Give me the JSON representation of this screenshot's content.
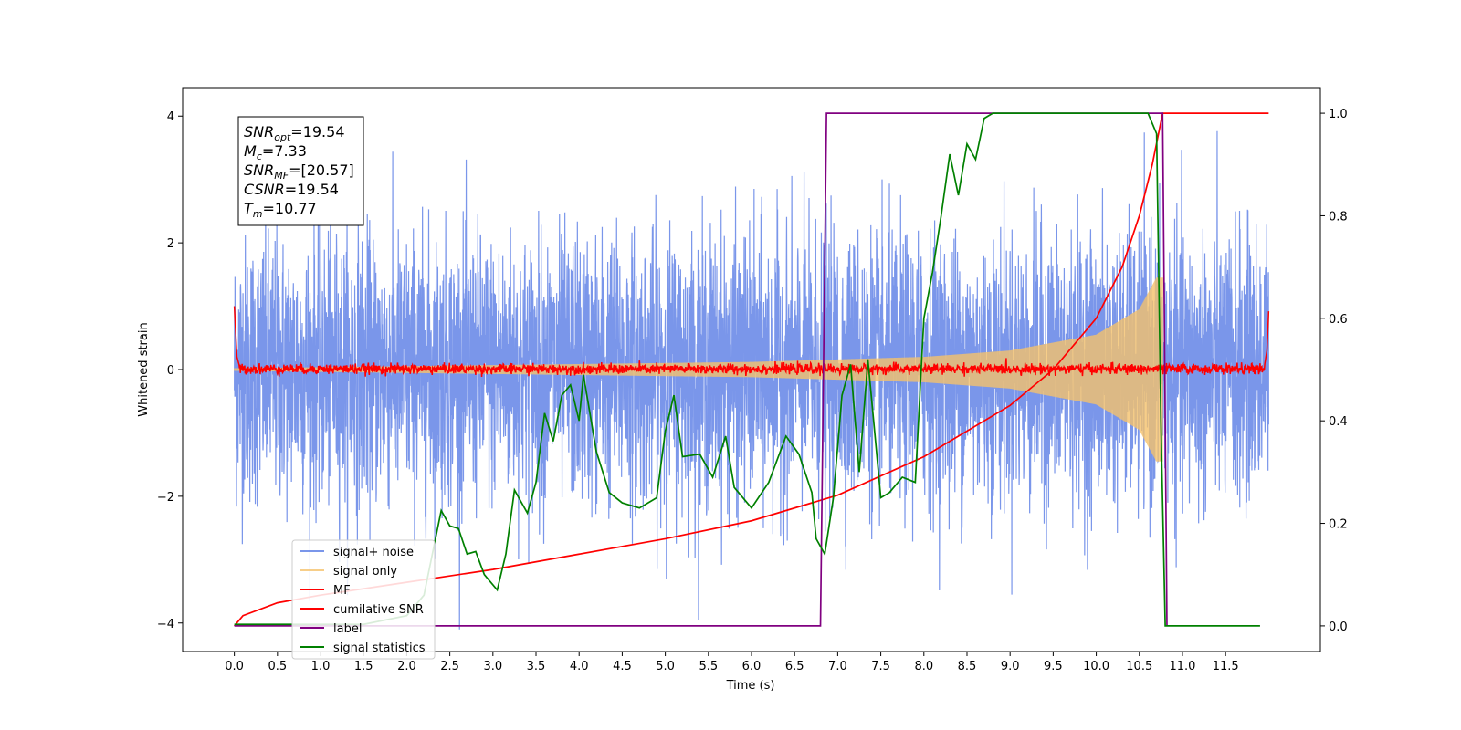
{
  "chart_data": {
    "type": "line",
    "xlabel": "Time (s)",
    "ylabel": "Whitened strain",
    "xlim": [
      -0.6,
      12.6
    ],
    "ylim": [
      -4.45,
      4.45
    ],
    "ylim_right": [
      -0.05,
      1.05
    ],
    "x_ticks": [
      "0.0",
      "0.5",
      "1.0",
      "1.5",
      "2.0",
      "2.5",
      "3.0",
      "3.5",
      "4.0",
      "4.5",
      "5.0",
      "5.5",
      "6.0",
      "6.5",
      "7.0",
      "7.5",
      "8.0",
      "8.5",
      "9.0",
      "9.5",
      "10.0",
      "10.5",
      "11.0",
      "11.5"
    ],
    "y_ticks_left": [
      "4",
      "2",
      "0",
      "−2",
      "−4"
    ],
    "y_ticks_left_values": [
      4,
      2,
      0,
      -2,
      -4
    ],
    "y_ticks_right": [
      "1.0",
      "0.8",
      "0.6",
      "0.4",
      "0.2",
      "0.0"
    ],
    "y_ticks_right_values": [
      1.0,
      0.8,
      0.6,
      0.4,
      0.2,
      0.0
    ],
    "legend_position": "lower-left",
    "info_box": {
      "lines": [
        {
          "sym": "SNR",
          "sub": "opt",
          "val": "=19.54"
        },
        {
          "sym": "M",
          "sub": "c",
          "val": "=7.33"
        },
        {
          "sym": "SNR",
          "sub": "MF",
          "val": "=[20.57]"
        },
        {
          "sym": "CSNR",
          "sub": "",
          "val": "=19.54"
        },
        {
          "sym": "T",
          "sub": "m",
          "val": "=10.77"
        }
      ]
    },
    "series": [
      {
        "name": "signal+ noise",
        "color": "#4169e1",
        "axis": "left",
        "kind": "noise",
        "std": 1.0,
        "x_range": [
          0,
          12.0
        ],
        "description_value_range": [
          -4.1,
          4.0
        ]
      },
      {
        "name": "signal only",
        "color": "#f5c26b",
        "axis": "left",
        "kind": "chirp",
        "envelope": [
          [
            0,
            0.02
          ],
          [
            6.0,
            0.12
          ],
          [
            8.0,
            0.2
          ],
          [
            9.0,
            0.3
          ],
          [
            10.0,
            0.55
          ],
          [
            10.5,
            0.95
          ],
          [
            10.7,
            1.45
          ],
          [
            10.77,
            0.0
          ]
        ]
      },
      {
        "name": "MF",
        "color": "#ff0000",
        "axis": "left",
        "kind": "mf",
        "values": [
          [
            0,
            1.0
          ],
          [
            0.03,
            0.2
          ],
          [
            0.06,
            0.05
          ],
          [
            11.95,
            0.05
          ],
          [
            11.98,
            0.3
          ],
          [
            12.0,
            0.92
          ]
        ]
      },
      {
        "name": "cumilative SNR",
        "color": "#ff0000",
        "axis": "right",
        "kind": "line",
        "points": [
          [
            0,
            0.0
          ],
          [
            0.1,
            0.02
          ],
          [
            0.5,
            0.045
          ],
          [
            1.0,
            0.06
          ],
          [
            2.0,
            0.085
          ],
          [
            3.0,
            0.11
          ],
          [
            4.0,
            0.14
          ],
          [
            5.0,
            0.17
          ],
          [
            6.0,
            0.205
          ],
          [
            7.0,
            0.255
          ],
          [
            8.0,
            0.33
          ],
          [
            9.0,
            0.43
          ],
          [
            9.5,
            0.5
          ],
          [
            10.0,
            0.6
          ],
          [
            10.3,
            0.7
          ],
          [
            10.5,
            0.8
          ],
          [
            10.65,
            0.9
          ],
          [
            10.77,
            1.0
          ],
          [
            12.0,
            1.0
          ]
        ]
      },
      {
        "name": "label",
        "color": "#800080",
        "axis": "right",
        "kind": "line",
        "points": [
          [
            0,
            0.0
          ],
          [
            6.8,
            0.0
          ],
          [
            6.87,
            1.0
          ],
          [
            10.77,
            1.0
          ],
          [
            10.82,
            0.0
          ]
        ]
      },
      {
        "name": "signal statistics",
        "color": "#008000",
        "axis": "right",
        "kind": "line",
        "points": [
          [
            0,
            0.003
          ],
          [
            0.5,
            0.003
          ],
          [
            1.0,
            0.003
          ],
          [
            1.5,
            0.003
          ],
          [
            2.0,
            0.02
          ],
          [
            2.2,
            0.06
          ],
          [
            2.4,
            0.225
          ],
          [
            2.5,
            0.195
          ],
          [
            2.6,
            0.19
          ],
          [
            2.7,
            0.14
          ],
          [
            2.8,
            0.145
          ],
          [
            2.9,
            0.1
          ],
          [
            3.05,
            0.07
          ],
          [
            3.15,
            0.14
          ],
          [
            3.25,
            0.265
          ],
          [
            3.4,
            0.22
          ],
          [
            3.5,
            0.28
          ],
          [
            3.6,
            0.415
          ],
          [
            3.7,
            0.36
          ],
          [
            3.8,
            0.45
          ],
          [
            3.9,
            0.47
          ],
          [
            4.0,
            0.4
          ],
          [
            4.05,
            0.49
          ],
          [
            4.2,
            0.34
          ],
          [
            4.35,
            0.26
          ],
          [
            4.5,
            0.24
          ],
          [
            4.7,
            0.23
          ],
          [
            4.9,
            0.25
          ],
          [
            5.0,
            0.38
          ],
          [
            5.1,
            0.45
          ],
          [
            5.2,
            0.33
          ],
          [
            5.4,
            0.335
          ],
          [
            5.55,
            0.29
          ],
          [
            5.7,
            0.37
          ],
          [
            5.8,
            0.27
          ],
          [
            6.0,
            0.23
          ],
          [
            6.2,
            0.28
          ],
          [
            6.4,
            0.37
          ],
          [
            6.55,
            0.335
          ],
          [
            6.7,
            0.26
          ],
          [
            6.75,
            0.17
          ],
          [
            6.85,
            0.14
          ],
          [
            6.95,
            0.25
          ],
          [
            7.05,
            0.45
          ],
          [
            7.15,
            0.51
          ],
          [
            7.25,
            0.3
          ],
          [
            7.35,
            0.52
          ],
          [
            7.5,
            0.25
          ],
          [
            7.6,
            0.26
          ],
          [
            7.75,
            0.29
          ],
          [
            7.9,
            0.28
          ],
          [
            8.0,
            0.6
          ],
          [
            8.1,
            0.69
          ],
          [
            8.2,
            0.8
          ],
          [
            8.3,
            0.92
          ],
          [
            8.4,
            0.84
          ],
          [
            8.5,
            0.94
          ],
          [
            8.6,
            0.91
          ],
          [
            8.7,
            0.99
          ],
          [
            8.8,
            1.0
          ],
          [
            10.6,
            1.0
          ],
          [
            10.7,
            0.96
          ],
          [
            10.75,
            0.4
          ],
          [
            10.8,
            0.0
          ],
          [
            11.9,
            0.0
          ]
        ]
      }
    ]
  }
}
